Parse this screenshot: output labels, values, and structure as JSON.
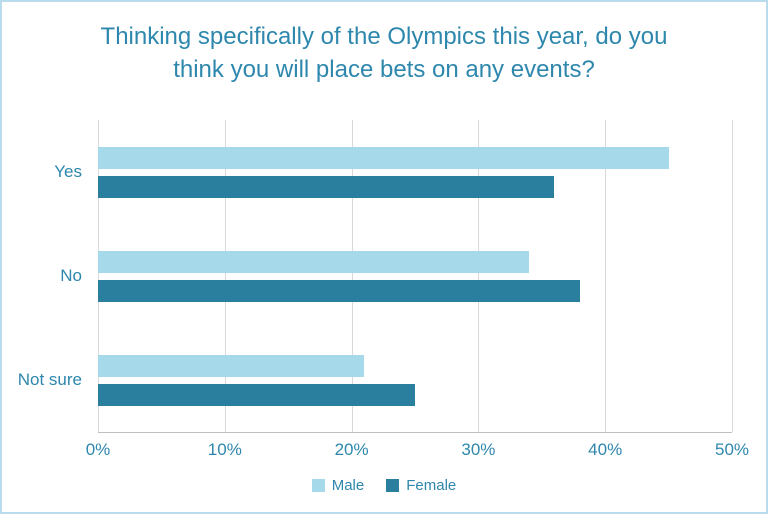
{
  "chart_data": {
    "type": "bar",
    "orientation": "horizontal",
    "title": "Thinking specifically of the Olympics this year, do you think you will place bets on any events?",
    "categories": [
      "Yes",
      "No",
      "Not sure"
    ],
    "series": [
      {
        "name": "Male",
        "color": "#a6d9ea",
        "values": [
          45,
          34,
          21
        ]
      },
      {
        "name": "Female",
        "color": "#2a7f9e",
        "values": [
          36,
          38,
          25
        ]
      }
    ],
    "xlim": [
      0,
      50
    ],
    "xticks": [
      0,
      10,
      20,
      30,
      40,
      50
    ],
    "xtick_labels": [
      "0%",
      "10%",
      "20%",
      "30%",
      "40%",
      "50%"
    ],
    "grid": true,
    "legend_position": "bottom",
    "value_format": "percent"
  },
  "colors": {
    "title_text": "#2e87ad",
    "axis_text": "#2e87ad",
    "gridline": "#d9d9d9",
    "axis_line": "#bfbfbf",
    "frame_border": "#b9dcec",
    "background": "#ffffff"
  }
}
